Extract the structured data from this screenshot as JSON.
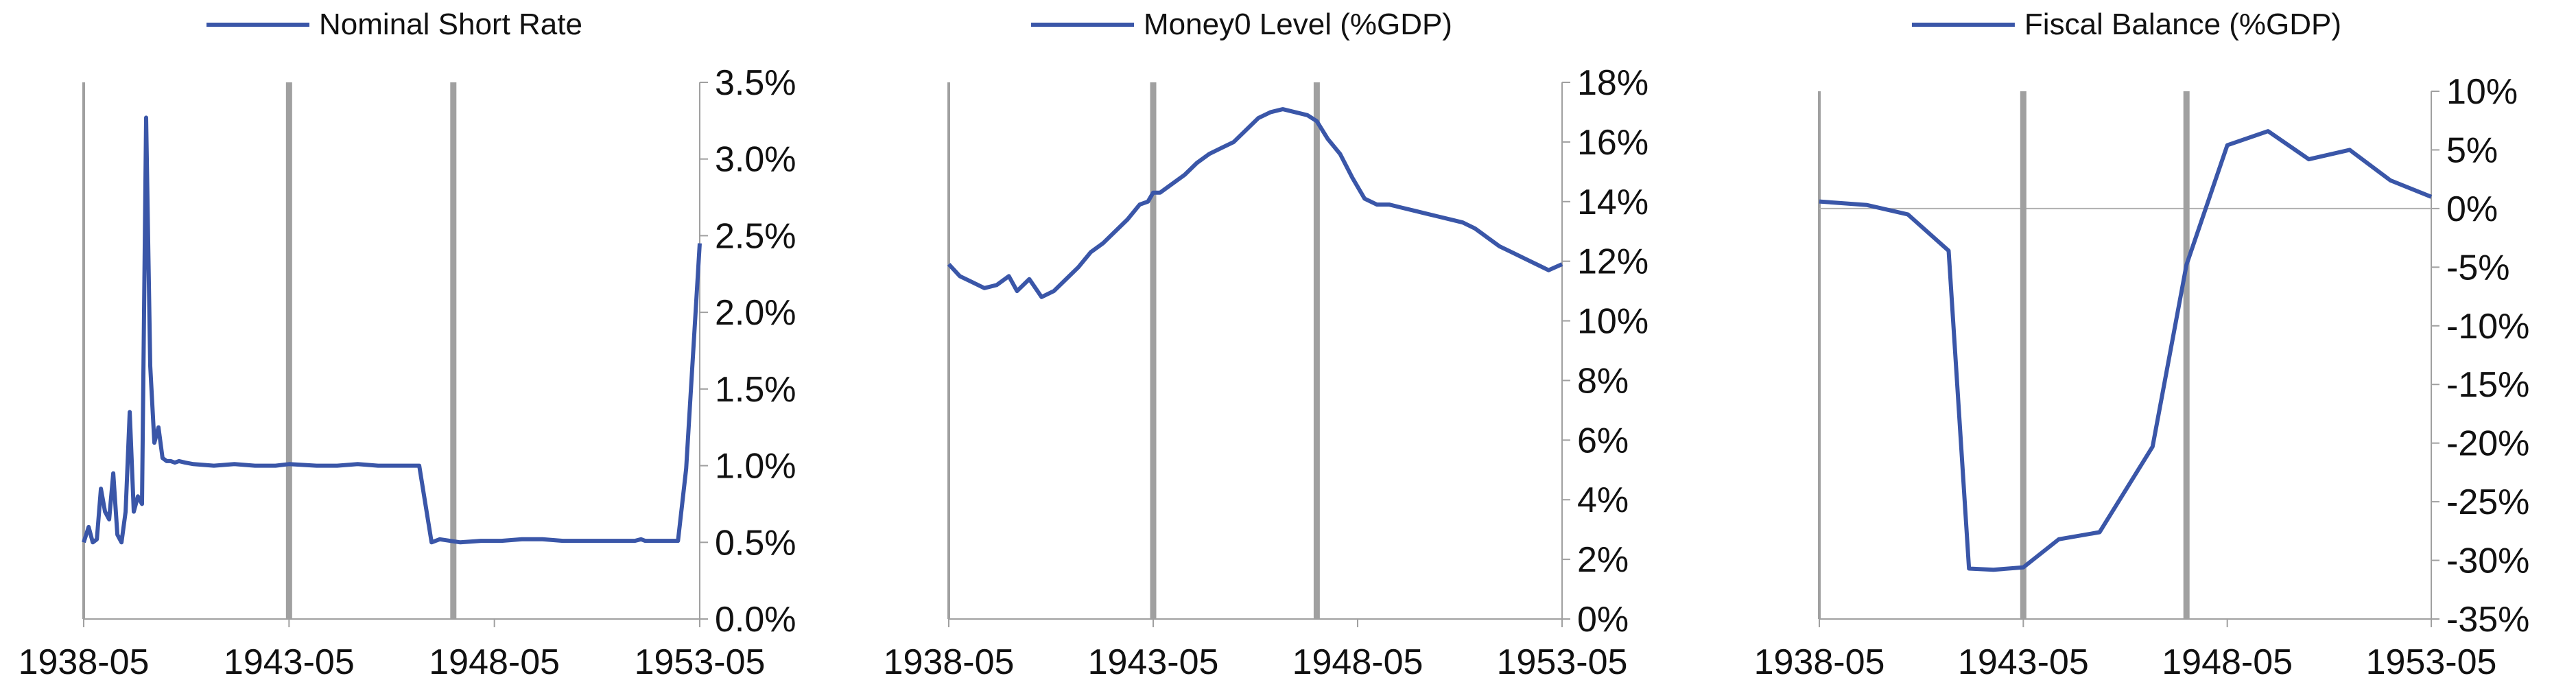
{
  "chart_data": [
    {
      "type": "line",
      "series": [
        {
          "name": "Nominal Short Rate",
          "color": "#3a56a8"
        }
      ],
      "y_tick_labels": [
        "3.5%",
        "3.0%",
        "2.5%",
        "2.0%",
        "1.5%",
        "1.0%",
        "0.5%",
        "0.0%"
      ],
      "x_tick_labels": [
        "1938-05",
        "1943-05",
        "1948-05",
        "1953-05"
      ],
      "ylim": [
        0,
        3.5
      ],
      "xlim": [
        1938.33,
        1953.33
      ],
      "highlight_lines": [
        1943.33,
        1947.33
      ],
      "highlight_color": "#a0a0a0",
      "legend_position": "top",
      "x": [
        1938.33,
        1938.45,
        1938.55,
        1938.65,
        1938.75,
        1938.85,
        1938.95,
        1939.05,
        1939.15,
        1939.25,
        1939.35,
        1939.45,
        1939.55,
        1939.65,
        1939.75,
        1939.85,
        1939.95,
        1940.05,
        1940.15,
        1940.25,
        1940.35,
        1940.45,
        1940.55,
        1940.65,
        1940.8,
        1941.0,
        1941.5,
        1942.0,
        1942.5,
        1943.0,
        1943.33,
        1944.0,
        1944.5,
        1945.0,
        1945.5,
        1946.0,
        1946.5,
        1946.8,
        1947.0,
        1947.5,
        1948.0,
        1948.5,
        1949.0,
        1949.5,
        1950.0,
        1950.5,
        1951.0,
        1951.3,
        1951.5,
        1951.65,
        1951.75,
        1951.9,
        1952.0,
        1952.2,
        1952.4,
        1952.6,
        1952.8,
        1953.0,
        1953.33
      ],
      "values": [
        0.5,
        0.6,
        0.5,
        0.52,
        0.85,
        0.7,
        0.65,
        0.95,
        0.55,
        0.5,
        0.7,
        1.35,
        0.7,
        0.8,
        0.75,
        3.27,
        1.65,
        1.15,
        1.25,
        1.05,
        1.03,
        1.03,
        1.02,
        1.03,
        1.02,
        1.01,
        1.0,
        1.01,
        1.0,
        1.0,
        1.01,
        1.0,
        1.0,
        1.01,
        1.0,
        1.0,
        1.0,
        0.5,
        0.52,
        0.5,
        0.51,
        0.51,
        0.52,
        0.52,
        0.51,
        0.51,
        0.51,
        0.51,
        0.51,
        0.51,
        0.51,
        0.52,
        0.51,
        0.51,
        0.51,
        0.51,
        0.51,
        0.98,
        2.45
      ]
    },
    {
      "type": "line",
      "series": [
        {
          "name": "Money0 Level (%GDP)",
          "color": "#3a56a8"
        }
      ],
      "y_tick_labels": [
        "18%",
        "16%",
        "14%",
        "12%",
        "10%",
        "8%",
        "6%",
        "4%",
        "2%",
        "0%"
      ],
      "x_tick_labels": [
        "1938-05",
        "1943-05",
        "1948-05",
        "1953-05"
      ],
      "ylim": [
        0,
        18
      ],
      "xlim": [
        1938.33,
        1953.33
      ],
      "highlight_lines": [
        1943.33,
        1947.33
      ],
      "highlight_color": "#a0a0a0",
      "legend_position": "top",
      "x": [
        1938.33,
        1938.6,
        1938.9,
        1939.2,
        1939.5,
        1939.8,
        1940.0,
        1940.3,
        1940.6,
        1940.9,
        1941.2,
        1941.5,
        1941.8,
        1942.1,
        1942.4,
        1942.7,
        1943.0,
        1943.2,
        1943.33,
        1943.5,
        1943.8,
        1944.1,
        1944.4,
        1944.7,
        1945.0,
        1945.3,
        1945.6,
        1945.9,
        1946.2,
        1946.5,
        1946.8,
        1947.1,
        1947.33,
        1947.6,
        1947.9,
        1948.2,
        1948.5,
        1948.8,
        1949.1,
        1949.4,
        1949.7,
        1950.0,
        1950.3,
        1950.6,
        1950.9,
        1951.2,
        1951.5,
        1951.8,
        1952.1,
        1952.4,
        1952.7,
        1953.0,
        1953.33
      ],
      "values": [
        11.9,
        11.5,
        11.3,
        11.1,
        11.2,
        11.5,
        11.0,
        11.4,
        10.8,
        11.0,
        11.4,
        11.8,
        12.3,
        12.6,
        13.0,
        13.4,
        13.9,
        14.0,
        14.3,
        14.3,
        14.6,
        14.9,
        15.3,
        15.6,
        15.8,
        16.0,
        16.4,
        16.8,
        17.0,
        17.1,
        17.0,
        16.9,
        16.7,
        16.1,
        15.6,
        14.8,
        14.1,
        13.9,
        13.9,
        13.8,
        13.7,
        13.6,
        13.5,
        13.4,
        13.3,
        13.1,
        12.8,
        12.5,
        12.3,
        12.1,
        11.9,
        11.7,
        11.9
      ]
    },
    {
      "type": "line",
      "series": [
        {
          "name": "Fiscal Balance (%GDP)",
          "color": "#3a56a8"
        }
      ],
      "y_tick_labels": [
        "10%",
        "5%",
        "0%",
        "-5%",
        "-10%",
        "-15%",
        "-20%",
        "-25%",
        "-30%",
        "-35%"
      ],
      "x_tick_labels": [
        "1938-05",
        "1943-05",
        "1948-05",
        "1953-05"
      ],
      "ylim": [
        -35,
        10
      ],
      "xlim": [
        1938.33,
        1953.33
      ],
      "highlight_lines": [
        1943.33,
        1947.33
      ],
      "highlight_color": "#a0a0a0",
      "legend_position": "top",
      "x": [
        1938.33,
        1939.5,
        1940.5,
        1941.5,
        1942.0,
        1942.6,
        1943.33,
        1944.2,
        1945.2,
        1946.5,
        1947.33,
        1948.33,
        1949.33,
        1950.33,
        1951.33,
        1952.33,
        1953.33
      ],
      "values": [
        0.6,
        0.3,
        -0.5,
        -3.6,
        -30.7,
        -30.8,
        -30.6,
        -28.2,
        -27.6,
        -20.3,
        -4.8,
        5.4,
        6.6,
        4.2,
        5.0,
        2.4,
        1.0
      ]
    }
  ]
}
